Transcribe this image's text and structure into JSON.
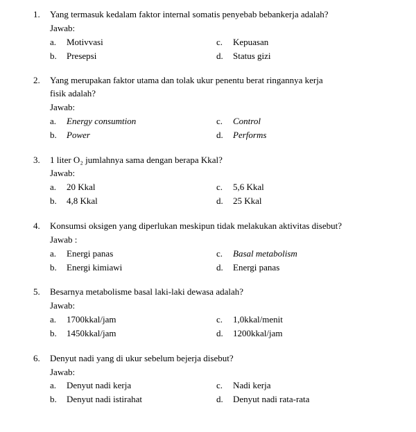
{
  "questions": [
    {
      "num": "1.",
      "text": "Yang termasuk kedalam faktor internal somatis penyebab bebankerja adalah?",
      "jawab": "Jawab:",
      "opts": {
        "a": {
          "l": "a.",
          "t": "Motivvasi",
          "it": false
        },
        "b": {
          "l": "b.",
          "t": "Presepsi",
          "it": false
        },
        "c": {
          "l": "c.",
          "t": "Kepuasan",
          "it": false
        },
        "d": {
          "l": "d.",
          "t": "Status gizi",
          "it": false
        }
      }
    },
    {
      "num": "2.",
      "text": "Yang merupakan faktor utama dan tolak ukur penentu berat ringannya kerja",
      "text2": "fisik adalah?",
      "jawab": "Jawab:",
      "opts": {
        "a": {
          "l": "a.",
          "t": "Energy consumtion",
          "it": true
        },
        "b": {
          "l": "b.",
          "t": "Power",
          "it": true
        },
        "c": {
          "l": "c.",
          "t": "Control",
          "it": true
        },
        "d": {
          "l": "d.",
          "t": "Performs",
          "it": true
        }
      }
    },
    {
      "num": "3.",
      "text": "1 liter O₂ jumlahnya sama dengan berapa Kkal?",
      "jawab": "Jawab:",
      "opts": {
        "a": {
          "l": "a.",
          "t": "20 Kkal",
          "it": false
        },
        "b": {
          "l": "b.",
          "t": "4,8 Kkal",
          "it": false
        },
        "c": {
          "l": "c.",
          "t": "5,6 Kkal",
          "it": false
        },
        "d": {
          "l": "d.",
          "t": "25 Kkal",
          "it": false
        }
      }
    },
    {
      "num": "4.",
      "text": "Konsumsi oksigen yang diperlukan meskipun tidak melakukan aktivitas disebut?",
      "jawab": "Jawab :",
      "opts": {
        "a": {
          "l": "a.",
          "t": "Energi panas",
          "it": false
        },
        "b": {
          "l": "b.",
          "t": "Energi kimiawi",
          "it": false
        },
        "c": {
          "l": "c.",
          "t": "Basal metabolism",
          "it": true
        },
        "d": {
          "l": "d.",
          "t": "Energi panas",
          "it": false
        }
      }
    },
    {
      "num": "5.",
      "text": "Besarnya metabolisme basal laki-laki dewasa adalah?",
      "jawab": "Jawab:",
      "opts": {
        "a": {
          "l": "a.",
          "t": "1700kkal/jam",
          "it": false
        },
        "b": {
          "l": "b.",
          "t": "1450kkal/jam",
          "it": false
        },
        "c": {
          "l": "c.",
          "t": "1,0kkal/menit",
          "it": false
        },
        "d": {
          "l": "d.",
          "t": "1200kkal/jam",
          "it": false
        }
      }
    },
    {
      "num": "6.",
      "text": "Denyut nadi yang di ukur sebelum bejerja disebut?",
      "jawab": "Jawab:",
      "opts": {
        "a": {
          "l": "a.",
          "t": "Denyut nadi kerja",
          "it": false
        },
        "b": {
          "l": "b.",
          "t": "Denyut nadi istirahat",
          "it": false
        },
        "c": {
          "l": "c.",
          "t": "Nadi kerja",
          "it": false
        },
        "d": {
          "l": "d.",
          "t": "Denyut nadi rata-rata",
          "it": false
        }
      }
    }
  ]
}
